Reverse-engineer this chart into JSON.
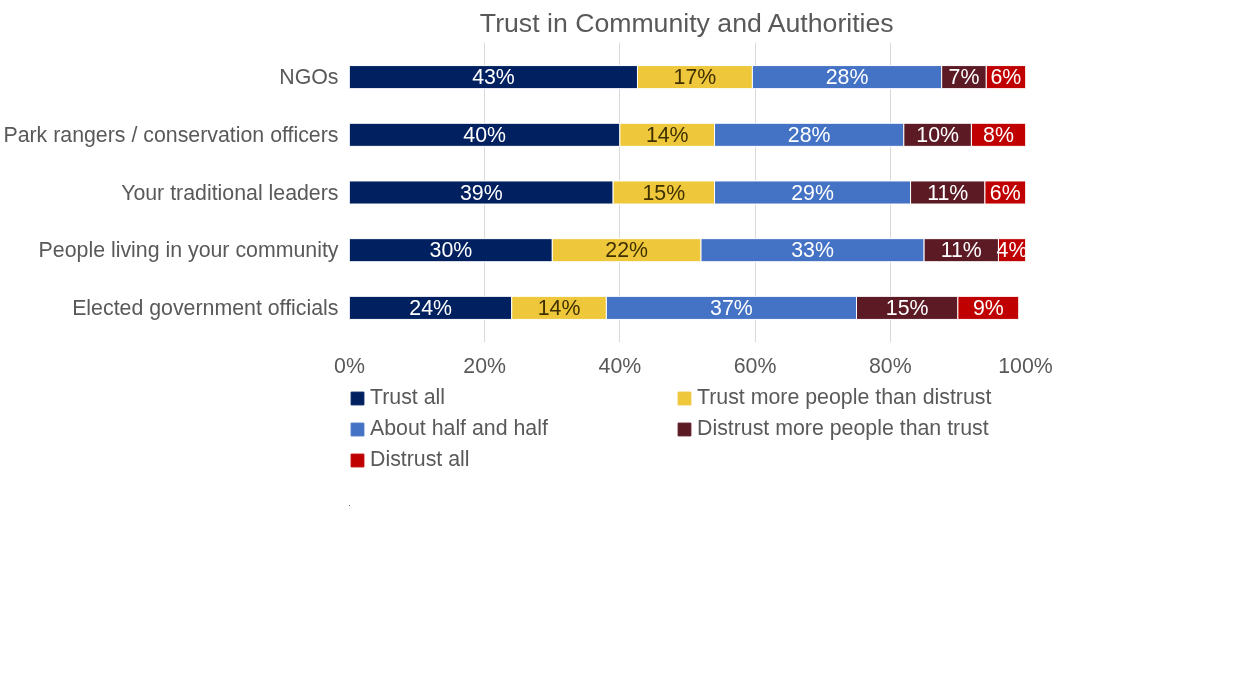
{
  "chart_data": {
    "type": "bar",
    "orientation": "horizontal",
    "stacked": true,
    "title": "Trust in Community and Authorities",
    "categories": [
      "NGOs",
      "Park rangers / conservation officers",
      "Your traditional leaders",
      "People living in your community",
      "Elected government officials"
    ],
    "series": [
      {
        "name": "Trust all",
        "color": "#002060",
        "values": [
          42.6,
          40,
          39,
          30,
          24
        ],
        "value_labels": [
          "43%",
          "40%",
          "39%",
          "30%",
          "24%"
        ]
      },
      {
        "name": "Trust more people than distrust",
        "color": "#eec73b",
        "values": [
          17,
          14,
          15,
          22,
          14
        ],
        "value_labels": [
          "17%",
          "14%",
          "15%",
          "22%",
          "14%"
        ]
      },
      {
        "name": "About half and half",
        "color": "#4472c4",
        "values": [
          28,
          28,
          29,
          33,
          37
        ],
        "value_labels": [
          "28%",
          "28%",
          "29%",
          "33%",
          "37%"
        ]
      },
      {
        "name": "Distrust more people than trust",
        "color": "#5c1a25",
        "values": [
          6.6,
          10,
          11,
          11,
          15
        ],
        "value_labels": [
          "7%",
          "10%",
          "11%",
          "11%",
          "15%"
        ]
      },
      {
        "name": "Distrust all",
        "color": "#c00000",
        "values": [
          5.8,
          8,
          6,
          4,
          9
        ],
        "value_labels": [
          "6%",
          "8%",
          "6%",
          "4%",
          "9%"
        ]
      }
    ],
    "xlim": [
      0,
      100
    ],
    "xticks": [
      {
        "value": 0,
        "label": "0%"
      },
      {
        "value": 20,
        "label": "20%"
      },
      {
        "value": 40,
        "label": "40%"
      },
      {
        "value": 60,
        "label": "60%"
      },
      {
        "value": 80,
        "label": "80%"
      },
      {
        "value": 100,
        "label": "100%"
      }
    ],
    "grid": "x",
    "legend": "bottom"
  }
}
